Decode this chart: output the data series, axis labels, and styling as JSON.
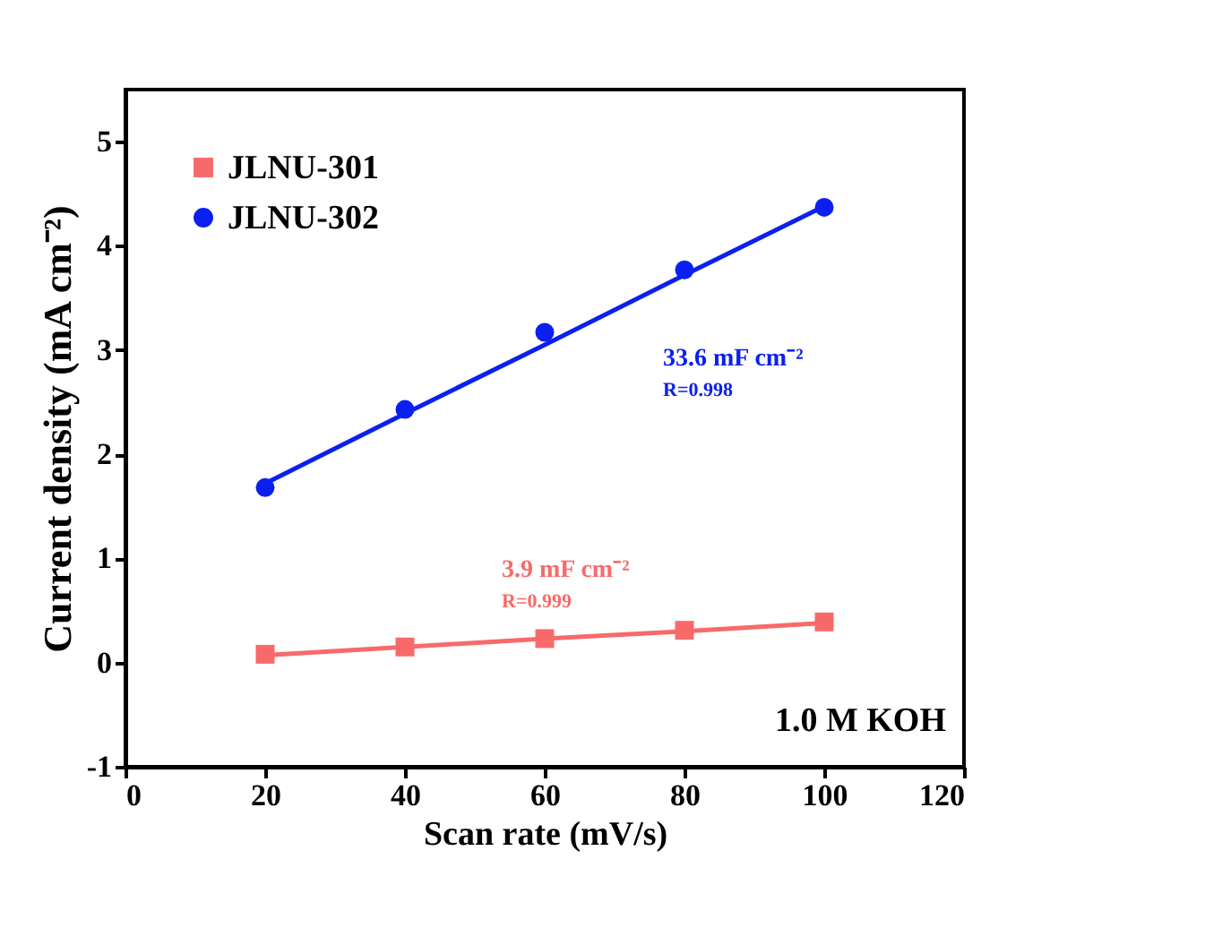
{
  "chart_data": {
    "type": "scatter",
    "xlabel": "Scan rate (mV/s)",
    "ylabel": "Current density (mA cm⁻²)",
    "x": [
      20,
      40,
      60,
      80,
      100
    ],
    "series": [
      {
        "name": "JLNU-301",
        "color": "#f86a6a",
        "marker": "square",
        "values": [
          0.08,
          0.15,
          0.23,
          0.31,
          0.39
        ]
      },
      {
        "name": "JLNU-302",
        "color": "#0b20f0",
        "marker": "circle",
        "values": [
          1.68,
          2.43,
          3.17,
          3.77,
          4.37
        ]
      },
      {
        "type": "line",
        "color": "#f86a6a",
        "marker": "none",
        "values": [
          0.07,
          0.15,
          0.23,
          0.3,
          0.38
        ]
      },
      {
        "type": "line",
        "color": "#0b20f0",
        "marker": "none",
        "values": [
          1.72,
          2.39,
          3.05,
          3.72,
          4.38
        ]
      }
    ],
    "annotations": [
      "33.6 mF cm⁻²",
      "R=0.998",
      "3.9 mF cm⁻²",
      "R=0.999",
      "1.0 M KOH"
    ],
    "xlim": [
      0,
      120
    ],
    "xticks": [
      0,
      20,
      40,
      60,
      80,
      100,
      120
    ],
    "ylim": [
      -1,
      5.5
    ],
    "yticks": [
      {
        "value": -1,
        "label": "-1"
      },
      {
        "value": 0,
        "label": "0"
      },
      {
        "value": 1,
        "label": "1"
      },
      {
        "value": 2,
        "label": "2"
      },
      {
        "value": 3,
        "label": "3"
      },
      {
        "value": 4,
        "label": "4"
      },
      {
        "value": 5,
        "label": "5"
      }
    ],
    "grid": false,
    "legend": "top left"
  }
}
